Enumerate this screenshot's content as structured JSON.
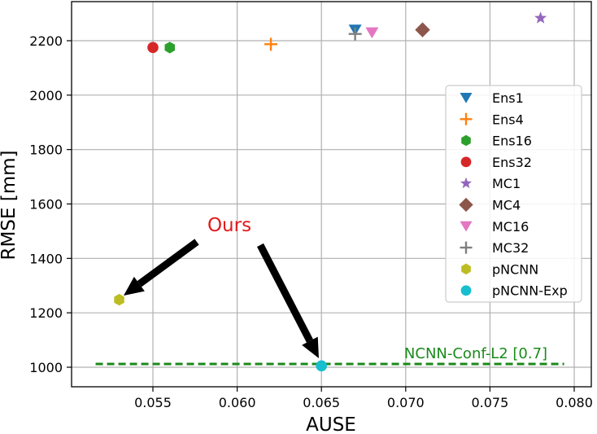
{
  "chart_data": {
    "type": "scatter",
    "title": "",
    "xlabel": "AUSE",
    "ylabel": "RMSE [mm]",
    "xlim": [
      0.0515,
      0.0809
    ],
    "ylim": [
      935,
      2345
    ],
    "xticks": [
      0.055,
      0.06,
      0.065,
      0.07,
      0.075,
      0.08
    ],
    "xtick_labels": [
      "0.055",
      "0.060",
      "0.065",
      "0.070",
      "0.075",
      "0.080"
    ],
    "yticks": [
      1000,
      1200,
      1400,
      1600,
      1800,
      2000,
      2200
    ],
    "ytick_labels": [
      "1000",
      "1200",
      "1400",
      "1600",
      "1800",
      "2000",
      "2200"
    ],
    "grid": true,
    "legend_position": "right",
    "series": [
      {
        "name": "Ens1",
        "marker": "triangle-down",
        "color": "#1f77b4",
        "x": 0.067,
        "y": 2240
      },
      {
        "name": "Ens4",
        "marker": "plus",
        "color": "#ff7f0e",
        "x": 0.062,
        "y": 2187
      },
      {
        "name": "Ens16",
        "marker": "hexagon",
        "color": "#2ca02c",
        "x": 0.056,
        "y": 2175
      },
      {
        "name": "Ens32",
        "marker": "circle",
        "color": "#d62728",
        "x": 0.055,
        "y": 2175
      },
      {
        "name": "MC1",
        "marker": "star",
        "color": "#9467bd",
        "x": 0.078,
        "y": 2283
      },
      {
        "name": "MC4",
        "marker": "diamond",
        "color": "#8c564b",
        "x": 0.071,
        "y": 2240
      },
      {
        "name": "MC16",
        "marker": "triangle-down",
        "color": "#e377c2",
        "x": 0.068,
        "y": 2230
      },
      {
        "name": "MC32",
        "marker": "plus",
        "color": "#7f7f7f",
        "x": 0.067,
        "y": 2225
      },
      {
        "name": "pNCNN",
        "marker": "hexagon",
        "color": "#bcbd22",
        "x": 0.053,
        "y": 1248
      },
      {
        "name": "pNCNN-Exp",
        "marker": "circle",
        "color": "#17becf",
        "x": 0.065,
        "y": 1005
      }
    ],
    "reference_line": {
      "label": "NCNN-Conf-L2 [0.7]",
      "y": 1012,
      "x_start": 0.0516,
      "x_end": 0.0794,
      "style": "dashed",
      "color": "#1a8a1a"
    },
    "annotations": [
      {
        "text": "Ours",
        "color": "#e31a1c",
        "points_to": [
          "pNCNN",
          "pNCNN-Exp"
        ]
      }
    ]
  }
}
